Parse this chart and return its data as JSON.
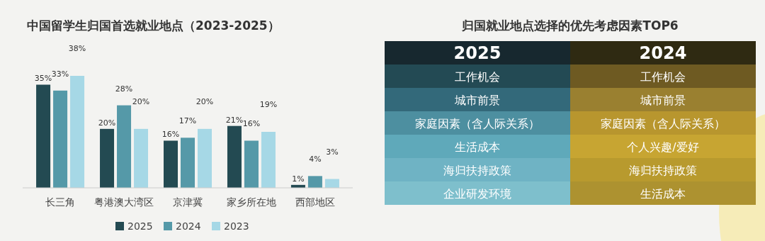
{
  "chart_data": [
    {
      "type": "bar",
      "title": "中国留学生归国首选就业地点（2023-2025）",
      "categories": [
        "长三角",
        "粤港澳大湾区",
        "京津冀",
        "家乡所在地",
        "西部地区"
      ],
      "series": [
        {
          "name": "2025",
          "color": "#234a52",
          "values": [
            35,
            20,
            16,
            21,
            1
          ],
          "value_labels": [
            "35%",
            "20%",
            "16%",
            "21%",
            "1%"
          ]
        },
        {
          "name": "2024",
          "color": "#5599a8",
          "values": [
            33,
            28,
            17,
            16,
            4
          ],
          "value_labels": [
            "33%",
            "28%",
            "17%",
            "16%",
            "4%"
          ]
        },
        {
          "name": "2023",
          "color": "#a6d8e6",
          "values": [
            38,
            20,
            20,
            19,
            3
          ],
          "value_labels": [
            "38%",
            "20%",
            "20%",
            "19%",
            "3%"
          ]
        }
      ],
      "legend": "bottom"
    },
    {
      "type": "other",
      "title": "归国就业地点选择的优先考虑因素TOP6",
      "categories": [
        "2025",
        "2024"
      ],
      "cell_labels": [
        [
          "工作机会",
          "工作机会"
        ],
        [
          "城市前景",
          "城市前景"
        ],
        [
          "家庭因素（含人际关系）",
          "家庭因素（含人际关系）"
        ],
        [
          "生活成本",
          "个人兴趣/爱好"
        ],
        [
          "海归扶持政策",
          "海归扶持政策"
        ],
        [
          "企业研发环境",
          "生活成本"
        ]
      ]
    }
  ]
}
